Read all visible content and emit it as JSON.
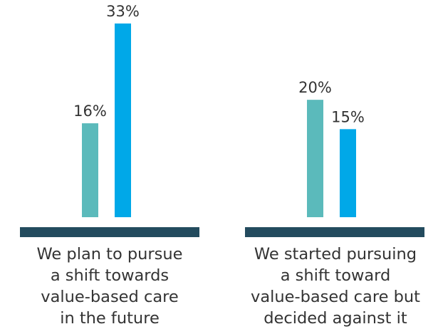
{
  "chart_data": {
    "type": "bar",
    "title": "",
    "xlabel": "",
    "ylabel": "",
    "ylim": [
      0,
      33
    ],
    "grid": false,
    "legend": "none",
    "value_format": "{v}%",
    "colors": [
      "#5bbabb",
      "#00a8e8"
    ],
    "baseline_color": "#234b5e",
    "categories": [
      {
        "label_lines": [
          "We plan to pursue",
          "a shift towards",
          "value-based care",
          "in the future"
        ],
        "values": [
          16,
          33
        ]
      },
      {
        "label_lines": [
          "We started pursuing",
          "a shift toward",
          "value-based care but",
          "decided against it"
        ],
        "values": [
          20,
          15
        ]
      }
    ]
  }
}
